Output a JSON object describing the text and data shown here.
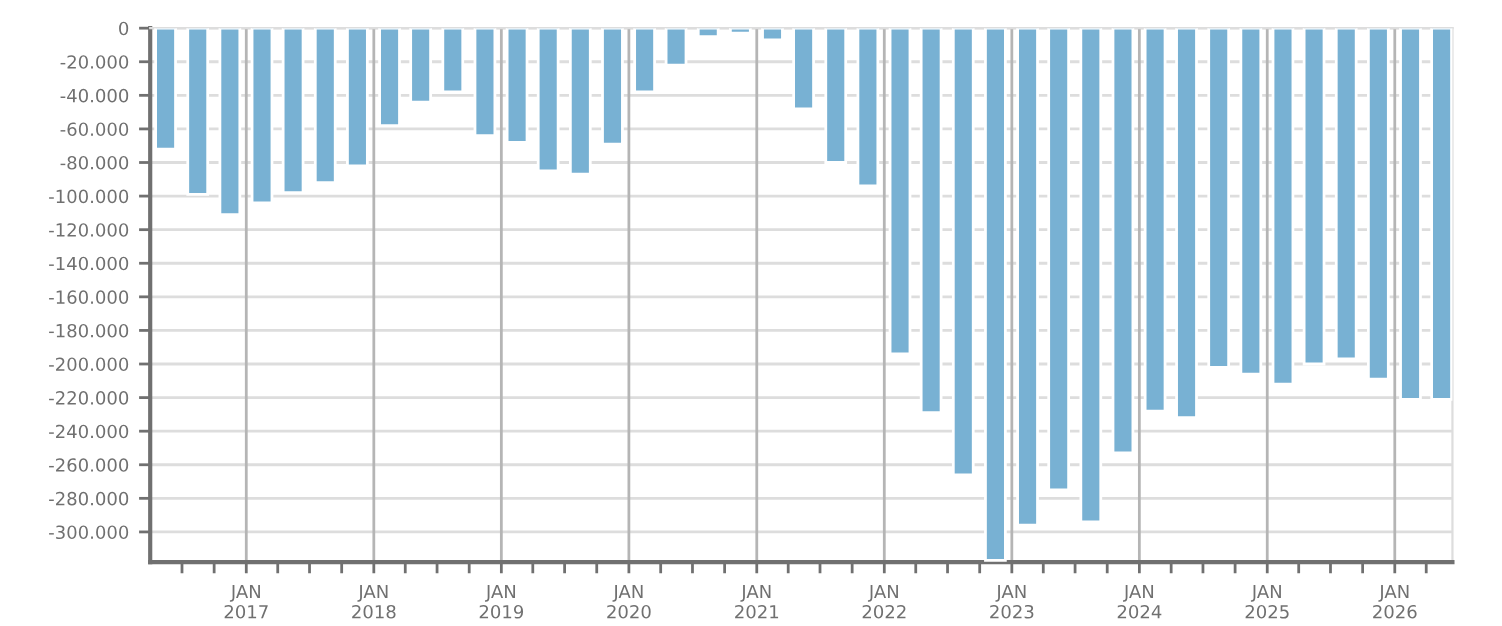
{
  "chart_data": {
    "type": "bar",
    "x": [
      "2016-05-15",
      "2016-08-15",
      "2016-11-15",
      "2017-02-15",
      "2017-05-15",
      "2017-08-15",
      "2017-11-15",
      "2018-02-15",
      "2018-05-15",
      "2018-08-15",
      "2018-11-15",
      "2019-02-15",
      "2019-05-15",
      "2019-08-15",
      "2019-11-15",
      "2020-02-15",
      "2020-05-15",
      "2020-08-15",
      "2020-11-15",
      "2021-02-15",
      "2021-05-15",
      "2021-08-15",
      "2021-11-15",
      "2022-02-15",
      "2022-05-15",
      "2022-08-15",
      "2022-11-15",
      "2023-02-15",
      "2023-05-15",
      "2023-08-15",
      "2023-11-15",
      "2024-02-15",
      "2024-05-15",
      "2024-08-15",
      "2024-11-15",
      "2025-02-15",
      "2025-05-15",
      "2025-08-15",
      "2025-11-15",
      "2026-02-15",
      "2026-05-15"
    ],
    "values": [
      -72000,
      -99000,
      -111000,
      -104000,
      -98000,
      -92000,
      -82000,
      -58000,
      -44000,
      -38000,
      -64000,
      -68000,
      -85000,
      -87000,
      -69000,
      -38000,
      -22000,
      -5000,
      -3000,
      -7000,
      -48000,
      -80000,
      -94000,
      -194000,
      -229000,
      -266000,
      -317000,
      -296000,
      -275000,
      -294000,
      -253000,
      -228000,
      -232000,
      -202000,
      -206000,
      -212000,
      -200000,
      -197000,
      -209000,
      -221000,
      -221000
    ],
    "color": "#78b1d3",
    "xlim": [
      "2016-04-01",
      "2026-06-15"
    ],
    "ylim": [
      -318000,
      0
    ],
    "xticks": [
      {
        "value": "2016-07-01",
        "label": null
      },
      {
        "value": "2016-10-01",
        "label": null
      },
      {
        "value": "2017-01-01",
        "label": "JAN\n2017"
      },
      {
        "value": "2017-04-01",
        "label": null
      },
      {
        "value": "2017-07-01",
        "label": null
      },
      {
        "value": "2017-10-01",
        "label": null
      },
      {
        "value": "2018-01-01",
        "label": "JAN\n2018"
      },
      {
        "value": "2018-04-01",
        "label": null
      },
      {
        "value": "2018-07-01",
        "label": null
      },
      {
        "value": "2018-10-01",
        "label": null
      },
      {
        "value": "2019-01-01",
        "label": "JAN\n2019"
      },
      {
        "value": "2019-04-01",
        "label": null
      },
      {
        "value": "2019-07-01",
        "label": null
      },
      {
        "value": "2019-10-01",
        "label": null
      },
      {
        "value": "2020-01-01",
        "label": "JAN\n2020"
      },
      {
        "value": "2020-04-01",
        "label": null
      },
      {
        "value": "2020-07-01",
        "label": null
      },
      {
        "value": "2020-10-01",
        "label": null
      },
      {
        "value": "2021-01-01",
        "label": "JAN\n2021"
      },
      {
        "value": "2021-04-01",
        "label": null
      },
      {
        "value": "2021-07-01",
        "label": null
      },
      {
        "value": "2021-10-01",
        "label": null
      },
      {
        "value": "2022-01-01",
        "label": "JAN\n2022"
      },
      {
        "value": "2022-04-01",
        "label": null
      },
      {
        "value": "2022-07-01",
        "label": null
      },
      {
        "value": "2022-10-01",
        "label": null
      },
      {
        "value": "2023-01-01",
        "label": "JAN\n2023"
      },
      {
        "value": "2023-04-01",
        "label": null
      },
      {
        "value": "2023-07-01",
        "label": null
      },
      {
        "value": "2023-10-01",
        "label": null
      },
      {
        "value": "2024-01-01",
        "label": "JAN\n2024"
      },
      {
        "value": "2024-04-01",
        "label": null
      },
      {
        "value": "2024-07-01",
        "label": null
      },
      {
        "value": "2024-10-01",
        "label": null
      },
      {
        "value": "2025-01-01",
        "label": "JAN\n2025"
      },
      {
        "value": "2025-04-01",
        "label": null
      },
      {
        "value": "2025-07-01",
        "label": null
      },
      {
        "value": "2025-10-01",
        "label": null
      },
      {
        "value": "2026-01-01",
        "label": "JAN\n2026"
      },
      {
        "value": "2026-04-01",
        "label": null
      }
    ],
    "yticks": [
      {
        "value": 0,
        "label": "0"
      },
      {
        "value": -20000,
        "label": "-20.000"
      },
      {
        "value": -40000,
        "label": "-40.000"
      },
      {
        "value": -60000,
        "label": "-60.000"
      },
      {
        "value": -80000,
        "label": "-80.000"
      },
      {
        "value": -100000,
        "label": "-100.000"
      },
      {
        "value": -120000,
        "label": "-120.000"
      },
      {
        "value": -140000,
        "label": "-140.000"
      },
      {
        "value": -160000,
        "label": "-160.000"
      },
      {
        "value": -180000,
        "label": "-180.000"
      },
      {
        "value": -200000,
        "label": "-200.000"
      },
      {
        "value": -220000,
        "label": "-220.000"
      },
      {
        "value": -240000,
        "label": "-240.000"
      },
      {
        "value": -260000,
        "label": "-260.000"
      },
      {
        "value": -280000,
        "label": "-280.000"
      },
      {
        "value": -300000,
        "label": "-300.000"
      }
    ],
    "grid": true
  }
}
